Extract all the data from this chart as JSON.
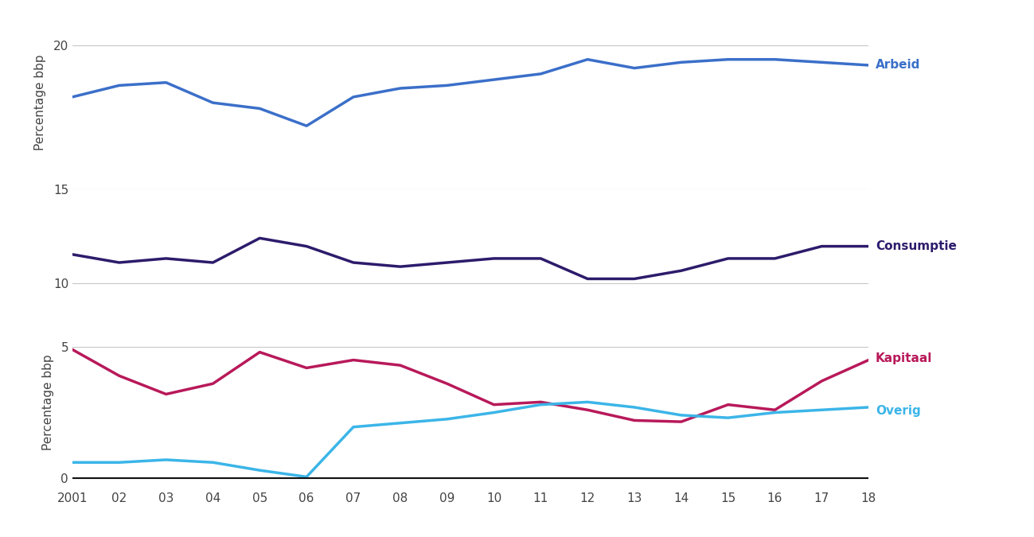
{
  "years": [
    2001,
    2002,
    2003,
    2004,
    2005,
    2006,
    2007,
    2008,
    2009,
    2010,
    2011,
    2012,
    2013,
    2014,
    2015,
    2016,
    2017,
    2018
  ],
  "arbeid": [
    18.2,
    18.6,
    18.7,
    18.0,
    17.8,
    17.2,
    18.2,
    18.5,
    18.6,
    18.8,
    19.0,
    19.5,
    19.2,
    19.4,
    19.5,
    19.5,
    19.4,
    19.3
  ],
  "consumptie": [
    10.7,
    10.5,
    10.6,
    10.5,
    11.1,
    10.9,
    10.5,
    10.4,
    10.5,
    10.6,
    10.6,
    10.1,
    10.1,
    10.3,
    10.6,
    10.6,
    10.9,
    10.9
  ],
  "kapitaal": [
    4.9,
    3.9,
    3.2,
    3.6,
    4.8,
    4.2,
    4.5,
    4.3,
    3.6,
    2.8,
    2.9,
    2.6,
    2.2,
    2.15,
    2.8,
    2.6,
    3.7,
    4.5
  ],
  "overig": [
    0.6,
    0.6,
    0.7,
    0.6,
    0.3,
    0.05,
    1.95,
    2.1,
    2.25,
    2.5,
    2.8,
    2.9,
    2.7,
    2.4,
    2.3,
    2.5,
    2.6,
    2.7
  ],
  "arbeid_color": "#3B6FC9",
  "consumptie_color": "#2D1B6B",
  "kapitaal_color": "#B8195A",
  "overig_color": "#3BB5E8",
  "ylabel": "Percentage bbp",
  "xticklabels": [
    "2001",
    "02",
    "03",
    "04",
    "05",
    "06",
    "07",
    "08",
    "09",
    "10",
    "11",
    "12",
    "13",
    "14",
    "15",
    "16",
    "17",
    "18"
  ],
  "label_arbeid": "Arbeid",
  "label_consumptie": "Consumptie",
  "label_kapitaal": "Kapitaal",
  "label_overig": "Overig",
  "line_width": 2.5,
  "grid_color": "#C8C8C8",
  "background_color": "#FFFFFF",
  "tick_color": "#444444",
  "tick_fontsize": 11,
  "label_fontsize": 11
}
